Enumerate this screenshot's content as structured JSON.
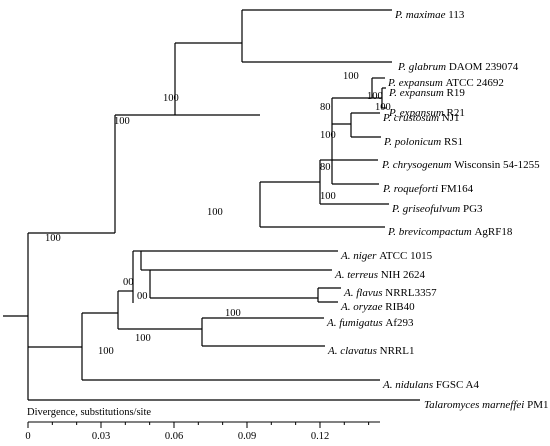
{
  "axis": {
    "title": "Divergence, substitutions/site",
    "ticks": [
      "0",
      "0.03",
      "0.06",
      "0.09",
      "0.12"
    ]
  },
  "taxa": [
    {
      "species": "P. maximae",
      "strain": "113"
    },
    {
      "species": "P. glabrum",
      "strain": "DAOM 239074"
    },
    {
      "species": "P. expansum",
      "strain": "ATCC 24692"
    },
    {
      "species": "P. expansum",
      "strain": "R19"
    },
    {
      "species": "P. expansum",
      "strain": "R21"
    },
    {
      "species": "P. crustosum",
      "strain": "NJ1"
    },
    {
      "species": "P. polonicum",
      "strain": "RS1"
    },
    {
      "species": "P. chrysogenum",
      "strain": "Wisconsin 54-1255"
    },
    {
      "species": "P. roqueforti",
      "strain": "FM164"
    },
    {
      "species": "P. griseofulvum",
      "strain": "PG3"
    },
    {
      "species": "P. brevicompactum",
      "strain": "AgRF18"
    },
    {
      "species": "A. niger",
      "strain": "ATCC 1015"
    },
    {
      "species": "A. terreus",
      "strain": "NIH 2624"
    },
    {
      "species": "A. flavus",
      "strain": "NRRL3357"
    },
    {
      "species": "A. oryzae",
      "strain": "RIB40"
    },
    {
      "species": "A. fumigatus",
      "strain": "Af293"
    },
    {
      "species": "A. clavatus",
      "strain": "NRRL1"
    },
    {
      "species": "A. nidulans",
      "strain": "FGSC A4"
    },
    {
      "species": "Talaromyces marneffei",
      "strain": "PM1"
    }
  ],
  "bootstrap_labels": [
    "100",
    "100",
    "100",
    "100",
    "100",
    "80",
    "100",
    "80",
    "100",
    "100",
    "100",
    "00",
    "100",
    "00",
    "100",
    "100"
  ]
}
